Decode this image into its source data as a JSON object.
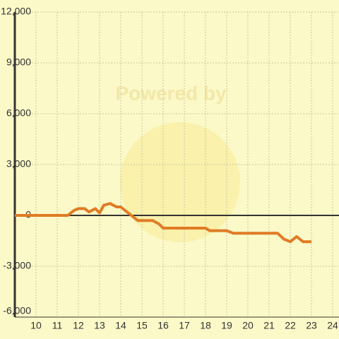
{
  "chart_data": {
    "type": "line",
    "watermark": "Powered by",
    "x": [
      9,
      11.5,
      11.8,
      12,
      12.3,
      12.5,
      12.8,
      13,
      13.2,
      13.5,
      13.8,
      14,
      14.8,
      15,
      15.5,
      15.8,
      16,
      17,
      18,
      18.2,
      19,
      19.3,
      20,
      21,
      21.4,
      21.7,
      22,
      22.3,
      22.6,
      23
    ],
    "series": [
      {
        "color": "#e07b24",
        "values": [
          0,
          0,
          300,
          400,
          400,
          200,
          400,
          150,
          600,
          700,
          500,
          500,
          -300,
          -300,
          -300,
          -500,
          -750,
          -750,
          -750,
          -900,
          -900,
          -1050,
          -1050,
          -1050,
          -1050,
          -1400,
          -1550,
          -1250,
          -1550,
          -1550
        ]
      }
    ],
    "xlim": [
      9,
      24.3
    ],
    "ylim": [
      -6000,
      12000
    ],
    "xticks": [
      10,
      11,
      12,
      13,
      14,
      15,
      16,
      17,
      18,
      19,
      20,
      21,
      22,
      23,
      24
    ],
    "yticks": [
      {
        "value": -6000,
        "label": "-6,000"
      },
      {
        "value": -3000,
        "label": "-3,000"
      },
      0,
      {
        "value": 3000,
        "label": "3,000"
      },
      {
        "value": 6000,
        "label": "6,000"
      },
      {
        "value": 9000,
        "label": "9,000"
      },
      {
        "value": 12000,
        "label": "12,000"
      }
    ],
    "grid": true
  }
}
